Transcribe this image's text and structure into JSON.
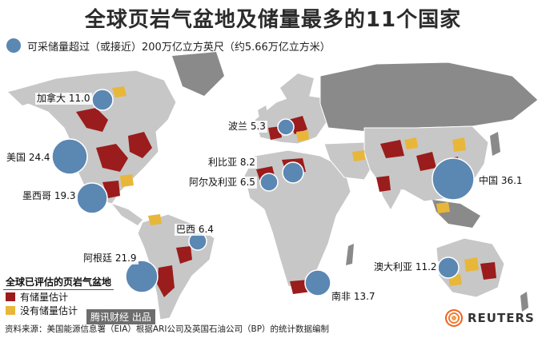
{
  "title": "全球页岩气盆地及储量最多的11个国家",
  "legend_top": "可采储量超过（或接近）200万亿立方英尺（约5.66万亿立方米）",
  "countries": [
    {
      "name": "加拿大",
      "value": 11.0
    },
    {
      "name": "美国",
      "value": 24.4
    },
    {
      "name": "墨西哥",
      "value": 19.3
    },
    {
      "name": "波兰",
      "value": 5.3
    },
    {
      "name": "利比亚",
      "value": 8.2
    },
    {
      "name": "阿尔及利亚",
      "value": 6.5
    },
    {
      "name": "巴西",
      "value": 6.4
    },
    {
      "name": "阿根廷",
      "value": 21.9
    },
    {
      "name": "中国",
      "value": 36.1
    },
    {
      "name": "澳大利亚",
      "value": 11.2
    },
    {
      "name": "南非",
      "value": 13.7
    }
  ],
  "labels": {
    "canada": "加拿大 11.0",
    "usa": "美国 24.4",
    "mexico": "墨西哥 19.3",
    "poland": "波兰 5.3",
    "libya": "利比亚 8.2",
    "algeria": "阿尔及利亚 6.5",
    "brazil": "巴西 6.4",
    "argentina": "阿根廷 21.9",
    "china": "中国 36.1",
    "australia": "澳大利亚 11.2",
    "south_africa": "南非 13.7"
  },
  "legend": {
    "title": "全球已评估的页岩气盆地",
    "items": [
      {
        "label": "有储量估计",
        "color": "#9b1c1c"
      },
      {
        "label": "没有储量估计",
        "color": "#e8b73a"
      }
    ]
  },
  "source": "资料来源：美国能源信息署（EIA）根据ARI公司及英国石油公司（BP）的统计数据编制",
  "brand": "REUTERS",
  "watermark": "腾讯财经 出品",
  "colors": {
    "bubble": "#5b87b3",
    "land_assessed": "#c7c7c7",
    "land_other": "#8a8a8a",
    "basin_estimated": "#9b1c1c",
    "basin_no_estimate": "#e8b73a"
  }
}
